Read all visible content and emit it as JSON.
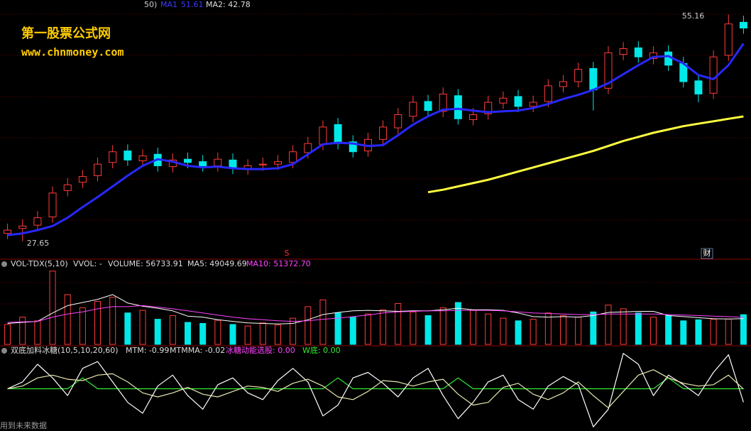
{
  "watermark": {
    "title": "第一股票公式网",
    "url": "www.chnmoney.com"
  },
  "footer": "用到未来数据",
  "chart_data": [
    {
      "type": "candlestick",
      "header": [
        "50)",
        "MA1",
        "51.61",
        "MA2: 42.78"
      ],
      "open": [
        28.6,
        29.2,
        29.6,
        30.6,
        33.8,
        34.8,
        35.6,
        37.2,
        38.6,
        37.4,
        38.2,
        36.7,
        37.6,
        37.3,
        36.8,
        37.5,
        36.4,
        36.9,
        37.0,
        37.2,
        38.4,
        39.4,
        41.8,
        39.7,
        38.6,
        40.0,
        41.4,
        42.8,
        44.6,
        43.4,
        45.3,
        42.4,
        43.1,
        44.4,
        45.2,
        44.0,
        44.6,
        46.4,
        47.0,
        48.6,
        46.2,
        50.3,
        51.1,
        49.8,
        50.6,
        49.2,
        47.1,
        45.6,
        50.2,
        54.2
      ],
      "high": [
        29.8,
        30.3,
        31.3,
        34.3,
        35.3,
        36.3,
        37.8,
        39.3,
        39.4,
        38.8,
        39.0,
        38.3,
        38.4,
        38.1,
        38.4,
        38.3,
        37.6,
        37.8,
        38.1,
        39.3,
        40.3,
        42.3,
        42.6,
        40.5,
        40.8,
        42.3,
        43.8,
        45.3,
        45.4,
        46.3,
        46.1,
        43.8,
        45.3,
        45.8,
        46.0,
        45.3,
        47.3,
        47.8,
        49.3,
        49.4,
        51.3,
        51.8,
        51.9,
        51.3,
        51.4,
        50.0,
        47.9,
        50.8,
        55.16,
        55.0
      ],
      "low": [
        27.9,
        27.65,
        28.9,
        29.9,
        33.1,
        34.1,
        34.9,
        36.5,
        36.8,
        36.7,
        36.1,
        36.0,
        36.5,
        36.1,
        36.1,
        35.8,
        35.7,
        36.2,
        36.3,
        36.5,
        37.7,
        38.7,
        38.8,
        37.8,
        37.9,
        39.3,
        40.7,
        42.1,
        42.8,
        42.7,
        41.8,
        41.7,
        42.4,
        43.7,
        43.3,
        43.3,
        43.9,
        45.7,
        46.3,
        43.5,
        45.5,
        49.6,
        49.3,
        49.1,
        48.3,
        46.3,
        44.5,
        44.9,
        49.5,
        52.8
      ],
      "close": [
        29.0,
        29.5,
        30.5,
        33.5,
        34.5,
        35.5,
        37.0,
        38.5,
        37.5,
        38.0,
        36.8,
        37.5,
        37.2,
        36.8,
        37.6,
        36.5,
        36.8,
        37.0,
        37.3,
        38.5,
        39.5,
        41.5,
        39.5,
        38.5,
        40.0,
        41.5,
        43.0,
        44.5,
        43.5,
        45.5,
        42.5,
        43.0,
        44.5,
        45.0,
        44.0,
        44.5,
        46.5,
        47.0,
        48.5,
        46.0,
        50.5,
        51.0,
        50.0,
        50.5,
        49.0,
        47.0,
        45.5,
        50.0,
        54.0,
        53.5
      ],
      "up_color": "#ff3c3c",
      "down_color": "#00e8e8",
      "ylim": [
        27.2,
        56.9
      ],
      "markers": [
        "S",
        "财"
      ],
      "series": [
        {
          "color": "#2828ff",
          "values": [
            28.4,
            28.6,
            29.0,
            29.5,
            30.5,
            31.8,
            33.0,
            34.3,
            35.6,
            36.8,
            37.6,
            37.3,
            36.8,
            36.6,
            36.7,
            36.5,
            36.4,
            36.4,
            36.5,
            37.0,
            38.2,
            39.4,
            39.6,
            39.5,
            39.2,
            39.3,
            40.5,
            41.8,
            42.8,
            43.6,
            43.7,
            43.5,
            43.3,
            43.4,
            43.5,
            43.8,
            44.3,
            44.9,
            45.4,
            46.0,
            46.8,
            47.9,
            49.0,
            50.0,
            50.1,
            49.2,
            47.8,
            47.3,
            49.0,
            51.61
          ]
        },
        {
          "color": "#ffff40",
          "values": [
            null,
            null,
            null,
            null,
            null,
            null,
            null,
            null,
            null,
            null,
            null,
            null,
            null,
            null,
            null,
            null,
            null,
            null,
            null,
            null,
            null,
            null,
            null,
            null,
            null,
            null,
            null,
            null,
            33.6,
            33.9,
            34.3,
            34.7,
            35.1,
            35.6,
            36.1,
            36.6,
            37.1,
            37.6,
            38.1,
            38.6,
            39.2,
            39.8,
            40.3,
            40.8,
            41.2,
            41.6,
            41.9,
            42.2,
            42.5,
            42.78
          ]
        }
      ]
    },
    {
      "type": "bar",
      "header": [
        "VOL-TDX(5,10)",
        "VVOL: -",
        "VOLUME: 56733.91",
        "MA5: 49049.69",
        "MA10: 51372.70"
      ],
      "values": [
        38000,
        52000,
        45000,
        140000,
        95000,
        70000,
        82000,
        90000,
        60000,
        65000,
        48000,
        55000,
        42000,
        40000,
        46000,
        38000,
        35000,
        41000,
        37000,
        50000,
        72000,
        85000,
        60000,
        52000,
        58000,
        66000,
        78000,
        62000,
        55000,
        70000,
        80000,
        65000,
        58000,
        50000,
        45000,
        48000,
        60000,
        55000,
        52000,
        62000,
        75000,
        68000,
        60000,
        52000,
        55000,
        45000,
        47000,
        48000,
        48500,
        56733.91
      ],
      "ylim": [
        0,
        160000
      ],
      "series": [
        {
          "color": "#ffffff",
          "values": [
            40000,
            42000,
            44000,
            60000,
            74000,
            80000,
            86000,
            95000,
            79000,
            73000,
            69000,
            64000,
            54000,
            52000,
            47000,
            44000,
            41000,
            40000,
            39000,
            40000,
            47000,
            57000,
            61000,
            64000,
            65000,
            64000,
            63000,
            64000,
            64000,
            66000,
            69000,
            66000,
            66000,
            65000,
            60000,
            53000,
            52000,
            53000,
            52000,
            55000,
            61000,
            62000,
            63000,
            63000,
            55000,
            53000,
            51000,
            49000,
            48500,
            49049.69
          ]
        },
        {
          "color": "#ff44ff",
          "values": [
            42000,
            43000,
            44000,
            52000,
            58000,
            62000,
            68000,
            72000,
            72000,
            74000,
            71000,
            68000,
            64000,
            60000,
            56000,
            52000,
            49000,
            47000,
            45000,
            44000,
            45000,
            48000,
            50000,
            53000,
            56000,
            60000,
            62000,
            63000,
            64000,
            64000,
            65000,
            65000,
            65000,
            64000,
            62000,
            60000,
            59000,
            58000,
            57000,
            57000,
            58000,
            58000,
            58000,
            58000,
            57000,
            56000,
            55000,
            54000,
            53000,
            51372.7
          ]
        }
      ]
    },
    {
      "type": "line",
      "header": [
        "双底加料冰糖(10,5,10,20,60)",
        "MTM: -0.99",
        "MTMMA: -0.02",
        "冰糖动能选股: 0.00",
        "W底: 0.00"
      ],
      "ylim": [
        -3,
        3
      ],
      "series": [
        {
          "color": "#33ee33",
          "values": [
            0,
            0,
            0,
            0,
            0,
            0.8,
            0,
            0,
            0,
            0,
            0,
            0,
            0,
            0,
            0,
            0,
            0,
            0,
            0,
            0,
            0,
            0,
            0.8,
            0,
            0,
            0,
            0,
            0,
            0,
            0,
            0.8,
            0,
            0,
            0,
            0,
            0,
            0,
            0,
            0,
            0,
            0,
            0,
            0,
            0,
            0.8,
            0,
            0,
            0,
            0,
            0
          ]
        },
        {
          "color": "#ffffff",
          "values": [
            0,
            0.5,
            1.8,
            0.8,
            -0.5,
            1.5,
            2.0,
            0.5,
            -1.0,
            -1.8,
            0.2,
            1.0,
            -0.5,
            -1.5,
            0.3,
            0.8,
            -0.3,
            -0.8,
            0.6,
            1.5,
            0.5,
            -2.0,
            -1.2,
            0.8,
            1.2,
            0.4,
            -0.6,
            0.8,
            1.5,
            -0.5,
            -2.2,
            -1.0,
            0.5,
            1.0,
            -0.8,
            -1.5,
            0.2,
            0.9,
            0.3,
            -2.8,
            -1.5,
            2.6,
            1.8,
            -0.5,
            1.0,
            0.3,
            -0.5,
            1.2,
            2.5,
            -0.99
          ]
        },
        {
          "color": "#e8e8b0",
          "values": [
            0,
            0.2,
            0.8,
            1.0,
            0.7,
            0.6,
            1.0,
            1.1,
            0.5,
            -0.3,
            -0.6,
            -0.3,
            0.1,
            -0.4,
            -0.6,
            -0.2,
            0.2,
            0.1,
            -0.2,
            0.4,
            0.7,
            0.2,
            -0.6,
            -0.8,
            -0.2,
            0.6,
            0.5,
            0.2,
            0.5,
            0.7,
            -0.4,
            -1.2,
            -1.0,
            0.1,
            0.4,
            -0.4,
            -0.8,
            -0.3,
            0.5,
            -0.5,
            -1.4,
            -0.2,
            1.0,
            1.4,
            0.8,
            0.4,
            0.2,
            0.3,
            1.0,
            -0.02
          ]
        }
      ]
    }
  ]
}
